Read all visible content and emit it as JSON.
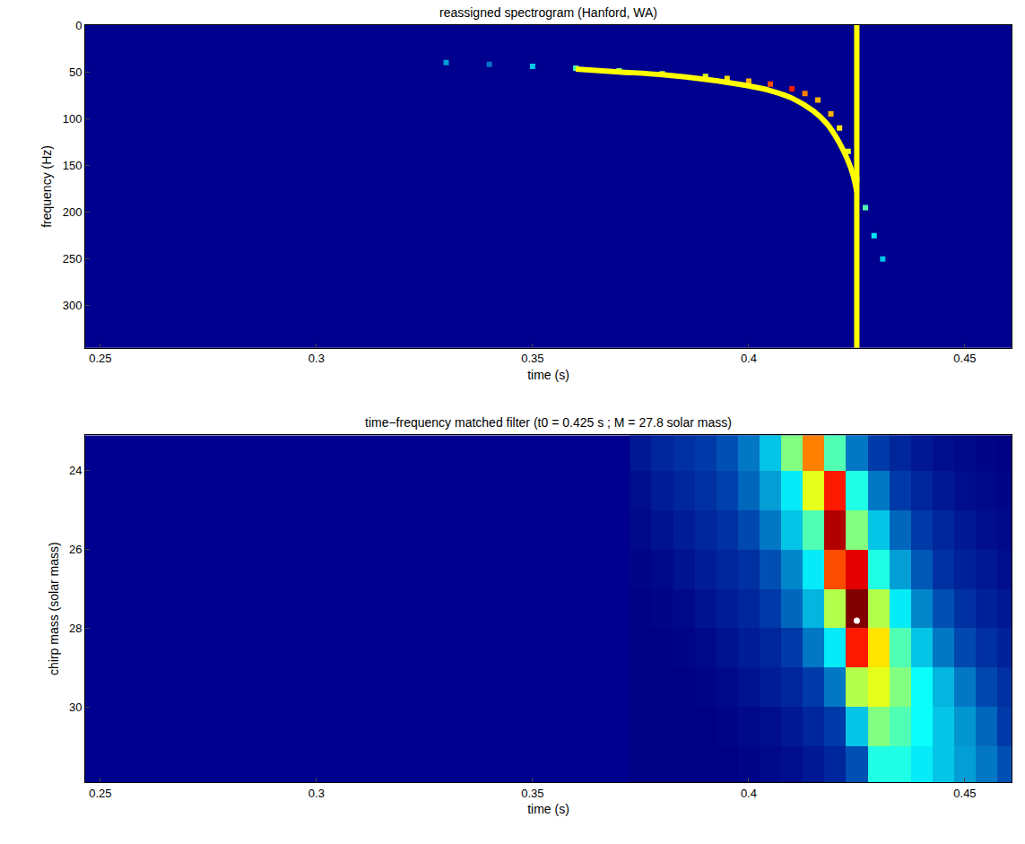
{
  "chart_data": [
    {
      "type": "scatter",
      "title": "reassigned spectrogram (Hanford, WA)",
      "x_label": "time (s)",
      "y_label": "frequency (Hz)",
      "xlim": [
        0.2465,
        0.4608
      ],
      "xticks": [
        0.25,
        0.3,
        0.35,
        0.4,
        0.45
      ],
      "ylim": [
        0,
        345
      ],
      "yticks": [
        0,
        50,
        100,
        150,
        200,
        250,
        300
      ],
      "zlim": [
        0,
        1
      ],
      "series": [
        {
          "type": "scatter",
          "marker": "square",
          "x": [
            0.33,
            0.34,
            0.35,
            0.36,
            0.37,
            0.38,
            0.39,
            0.395,
            0.4,
            0.405,
            0.41,
            0.413,
            0.416,
            0.419,
            0.421,
            0.423,
            0.425,
            0.427,
            0.429,
            0.431
          ],
          "values": [
            40,
            42,
            44,
            46,
            49,
            52,
            55,
            57,
            60,
            63,
            68,
            73,
            80,
            95,
            110,
            135,
            165,
            195,
            225,
            250
          ],
          "intensity": [
            0.25,
            0.2,
            0.3,
            0.45,
            0.5,
            0.55,
            0.6,
            0.65,
            0.7,
            0.8,
            0.85,
            0.75,
            0.7,
            0.7,
            0.65,
            0.6,
            0.5,
            0.45,
            0.35,
            0.3
          ]
        },
        {
          "type": "line",
          "color": "#ffff00",
          "x": [
            0.36,
            0.37,
            0.38,
            0.39,
            0.4,
            0.405,
            0.41,
            0.415,
            0.418,
            0.42,
            0.422,
            0.424,
            0.425
          ],
          "values": [
            47,
            50,
            53,
            58,
            65,
            70,
            78,
            92,
            105,
            118,
            135,
            158,
            178
          ]
        }
      ],
      "vertical_line": {
        "x": 0.425,
        "color": "#ffff00"
      }
    },
    {
      "type": "heatmap",
      "title": "time−frequency matched filter (t0 = 0.425 s ; M = 27.8 solar mass)",
      "x_label": "time (s)",
      "y_label": "chirp mass (solar mass)",
      "xlim": [
        0.2465,
        0.4608
      ],
      "xticks": [
        0.25,
        0.3,
        0.35,
        0.4,
        0.45
      ],
      "ylim": [
        23.1,
        31.9
      ],
      "yticks": [
        24,
        26,
        28,
        30
      ],
      "zlim": [
        0,
        1
      ],
      "x": [
        0.375,
        0.38,
        0.385,
        0.39,
        0.395,
        0.4,
        0.405,
        0.41,
        0.415,
        0.42,
        0.425,
        0.43,
        0.435,
        0.44,
        0.445,
        0.45,
        0.455,
        0.46
      ],
      "y": [
        23.5,
        24.5,
        25.5,
        26.5,
        27.5,
        28.5,
        29.5,
        30.5,
        31.5
      ],
      "z": [
        [
          0.05,
          0.08,
          0.1,
          0.12,
          0.15,
          0.2,
          0.3,
          0.5,
          0.75,
          0.45,
          0.2,
          0.12,
          0.08,
          0.05,
          0.03,
          0.02,
          0.01,
          0
        ],
        [
          0.03,
          0.06,
          0.08,
          0.1,
          0.13,
          0.18,
          0.25,
          0.35,
          0.6,
          0.85,
          0.4,
          0.2,
          0.12,
          0.08,
          0.05,
          0.03,
          0.02,
          0.01
        ],
        [
          0.02,
          0.04,
          0.06,
          0.08,
          0.1,
          0.14,
          0.2,
          0.3,
          0.45,
          0.95,
          0.5,
          0.3,
          0.18,
          0.12,
          0.08,
          0.05,
          0.03,
          0.02
        ],
        [
          0.01,
          0.02,
          0.04,
          0.06,
          0.08,
          0.1,
          0.15,
          0.22,
          0.35,
          0.8,
          0.9,
          0.4,
          0.25,
          0.16,
          0.1,
          0.07,
          0.05,
          0.03
        ],
        [
          0,
          0.01,
          0.02,
          0.04,
          0.06,
          0.08,
          0.12,
          0.18,
          0.28,
          0.55,
          1.0,
          0.55,
          0.35,
          0.22,
          0.15,
          0.1,
          0.07,
          0.05
        ],
        [
          0,
          0,
          0.01,
          0.02,
          0.04,
          0.06,
          0.08,
          0.12,
          0.2,
          0.35,
          0.85,
          0.65,
          0.45,
          0.3,
          0.2,
          0.14,
          0.1,
          0.07
        ],
        [
          0,
          0,
          0,
          0.01,
          0.02,
          0.04,
          0.06,
          0.08,
          0.12,
          0.2,
          0.55,
          0.6,
          0.5,
          0.38,
          0.28,
          0.2,
          0.14,
          0.1
        ],
        [
          0,
          0,
          0,
          0,
          0.01,
          0.02,
          0.03,
          0.05,
          0.08,
          0.12,
          0.3,
          0.5,
          0.45,
          0.38,
          0.3,
          0.24,
          0.18,
          0.12
        ],
        [
          0,
          0,
          0,
          0,
          0,
          0.01,
          0.02,
          0.03,
          0.05,
          0.08,
          0.15,
          0.4,
          0.4,
          0.35,
          0.3,
          0.25,
          0.2,
          0.15
        ]
      ],
      "point": {
        "x": 0.425,
        "y": 27.8,
        "color": "#ffffff"
      }
    }
  ]
}
